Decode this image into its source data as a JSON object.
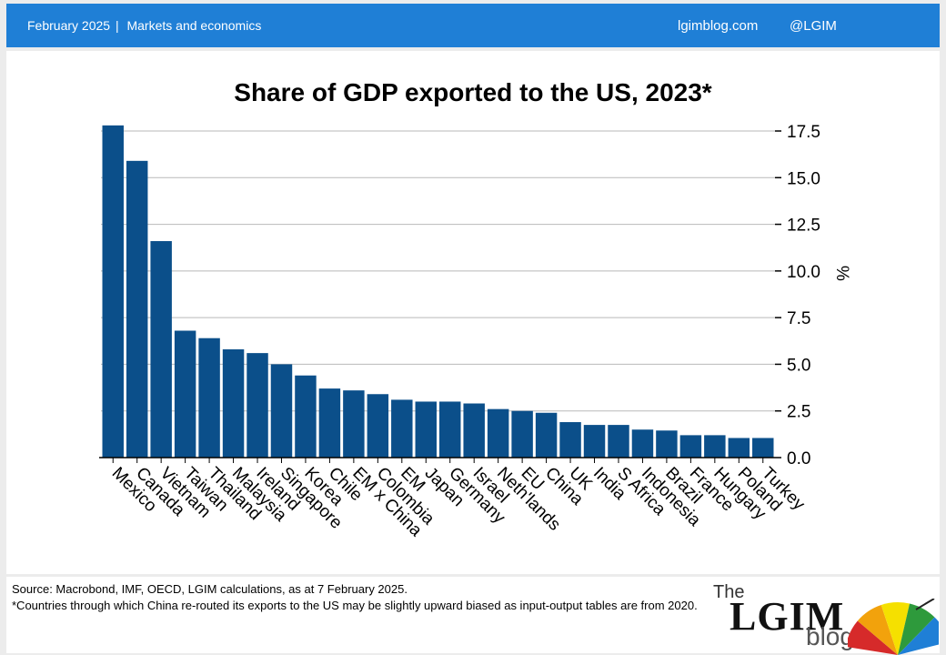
{
  "header": {
    "date": "February 2025",
    "separator": "|",
    "section": "Markets and economics",
    "site": "lgimblog.com",
    "handle": "@LGIM"
  },
  "chart_data": {
    "type": "bar",
    "title": "Share of GDP exported to the US, 2023*",
    "ylabel": "%",
    "xlabel": "",
    "ylim": [
      0,
      17.5
    ],
    "yticks": [
      "17.5",
      "15.0",
      "12.5",
      "10.0",
      "7.5",
      "5.0",
      "2.5",
      "0.0"
    ],
    "yaxis_position": "right",
    "grid": true,
    "bar_color": "#0b4f8a",
    "categories": [
      "Mexico",
      "Canada",
      "Vietnam",
      "Taiwan",
      "Thailand",
      "Malaysia",
      "Ireland",
      "Singapore",
      "Korea",
      "Chile",
      "EM x China",
      "Colombia",
      "EM",
      "Japan",
      "Germany",
      "Israel",
      "Neth'lands",
      "EU",
      "China",
      "UK",
      "India",
      "S Africa",
      "Indonesia",
      "Brazil",
      "France",
      "Hungary",
      "Poland",
      "Turkey"
    ],
    "values": [
      17.8,
      15.9,
      11.6,
      6.8,
      6.4,
      5.8,
      5.6,
      5.0,
      4.4,
      3.7,
      3.6,
      3.4,
      3.1,
      3.0,
      3.0,
      2.9,
      2.6,
      2.5,
      2.4,
      1.9,
      1.75,
      1.75,
      1.5,
      1.45,
      1.2,
      1.2,
      1.05,
      1.05
    ]
  },
  "footer": {
    "source": "Source: Macrobond, IMF, OECD, LGIM calculations, as at 7 February 2025.",
    "note": "*Countries through which China re-routed its exports to the US may be slightly upward biased as input-output tables are from 2020."
  },
  "logo": {
    "the": "The",
    "name": "LGIM",
    "blog": "blog",
    "colors": [
      "#d62a2a",
      "#f2a20c",
      "#f5e000",
      "#2e9a3c",
      "#1f7fd6"
    ]
  }
}
